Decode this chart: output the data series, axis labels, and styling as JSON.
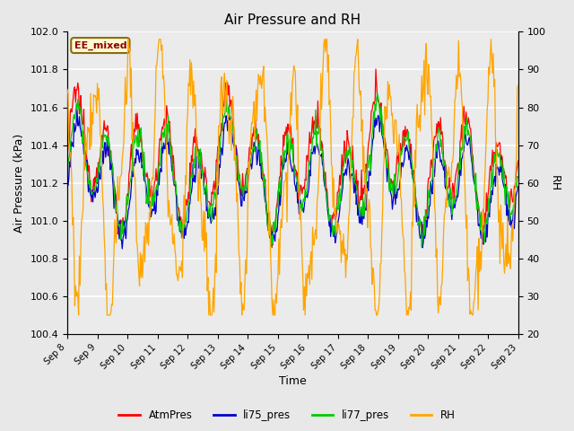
{
  "title": "Air Pressure and RH",
  "xlabel": "Time",
  "ylabel_left": "Air Pressure (kPa)",
  "ylabel_right": "RH",
  "ylim_left": [
    100.4,
    102.0
  ],
  "ylim_right": [
    20,
    100
  ],
  "yticks_left": [
    100.4,
    100.6,
    100.8,
    101.0,
    101.2,
    101.4,
    101.6,
    101.8,
    102.0
  ],
  "yticks_right": [
    20,
    30,
    40,
    50,
    60,
    70,
    80,
    90,
    100
  ],
  "xtick_labels": [
    "Sep 8",
    "Sep 9",
    "Sep 10",
    "Sep 11",
    "Sep 12",
    "Sep 13",
    "Sep 14",
    "Sep 15",
    "Sep 16",
    "Sep 17",
    "Sep 18",
    "Sep 19",
    "Sep 20",
    "Sep 21",
    "Sep 22",
    "Sep 23"
  ],
  "watermark_text": "EE_mixed",
  "watermark_color": "#8B0000",
  "watermark_bg": "#FFFACD",
  "watermark_border": "#8B6914",
  "line_colors": {
    "AtmPres": "#FF0000",
    "li75_pres": "#0000CC",
    "li77_pres": "#00CC00",
    "RH": "#FFA500"
  },
  "bg_color": "#E8E8E8",
  "plot_bg_color": "#EBEBEB",
  "grid_color": "#FFFFFF"
}
